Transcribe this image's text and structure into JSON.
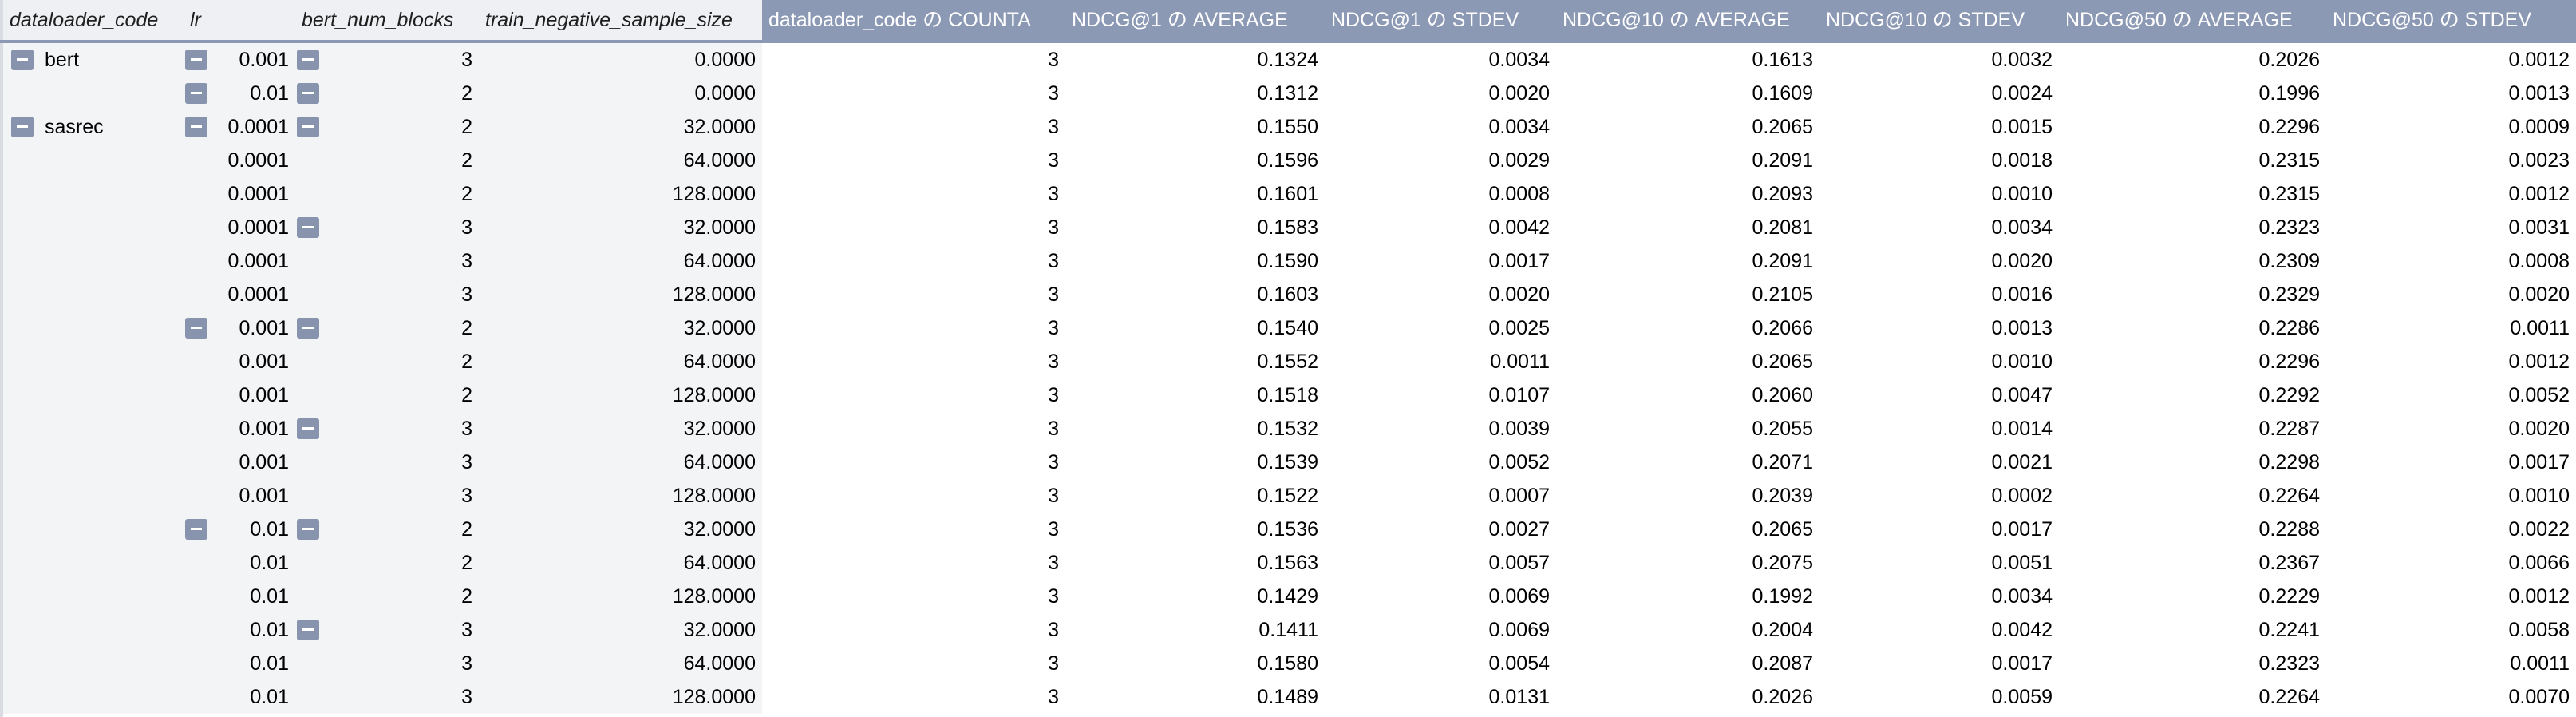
{
  "headers": {
    "dataloader_code": "dataloader_code",
    "lr": "lr",
    "bert_num_blocks": "bert_num_blocks",
    "train_negative_sample_size": "train_negative_sample_size",
    "counta": "dataloader_code の COUNTA",
    "ndcg1_avg": "NDCG@1 の AVERAGE",
    "ndcg1_std": "NDCG@1 の STDEV",
    "ndcg10_avg": "NDCG@10 の AVERAGE",
    "ndcg10_std": "NDCG@10 の STDEV",
    "ndcg50_avg": "NDCG@50 の AVERAGE",
    "ndcg50_std": "NDCG@50 の STDEV"
  },
  "rows": [
    {
      "code": "bert",
      "lr": "0.001",
      "blocks": "3",
      "neg": "0.0000",
      "count": "3",
      "n1a": "0.1324",
      "n1s": "0.0034",
      "n10a": "0.1613",
      "n10s": "0.0032",
      "n50a": "0.2026",
      "n50s": "0.0012",
      "t_code": true,
      "t_lr": true,
      "t_blocks": true
    },
    {
      "code": "",
      "lr": "0.01",
      "blocks": "2",
      "neg": "0.0000",
      "count": "3",
      "n1a": "0.1312",
      "n1s": "0.0020",
      "n10a": "0.1609",
      "n10s": "0.0024",
      "n50a": "0.1996",
      "n50s": "0.0013",
      "t_code": false,
      "t_lr": true,
      "t_blocks": true
    },
    {
      "code": "sasrec",
      "lr": "0.0001",
      "blocks": "2",
      "neg": "32.0000",
      "count": "3",
      "n1a": "0.1550",
      "n1s": "0.0034",
      "n10a": "0.2065",
      "n10s": "0.0015",
      "n50a": "0.2296",
      "n50s": "0.0009",
      "t_code": true,
      "t_lr": true,
      "t_blocks": true
    },
    {
      "code": "",
      "lr": "0.0001",
      "blocks": "2",
      "neg": "64.0000",
      "count": "3",
      "n1a": "0.1596",
      "n1s": "0.0029",
      "n10a": "0.2091",
      "n10s": "0.0018",
      "n50a": "0.2315",
      "n50s": "0.0023",
      "t_code": false,
      "t_lr": false,
      "t_blocks": false
    },
    {
      "code": "",
      "lr": "0.0001",
      "blocks": "2",
      "neg": "128.0000",
      "count": "3",
      "n1a": "0.1601",
      "n1s": "0.0008",
      "n10a": "0.2093",
      "n10s": "0.0010",
      "n50a": "0.2315",
      "n50s": "0.0012",
      "t_code": false,
      "t_lr": false,
      "t_blocks": false
    },
    {
      "code": "",
      "lr": "0.0001",
      "blocks": "3",
      "neg": "32.0000",
      "count": "3",
      "n1a": "0.1583",
      "n1s": "0.0042",
      "n10a": "0.2081",
      "n10s": "0.0034",
      "n50a": "0.2323",
      "n50s": "0.0031",
      "t_code": false,
      "t_lr": false,
      "t_blocks": true
    },
    {
      "code": "",
      "lr": "0.0001",
      "blocks": "3",
      "neg": "64.0000",
      "count": "3",
      "n1a": "0.1590",
      "n1s": "0.0017",
      "n10a": "0.2091",
      "n10s": "0.0020",
      "n50a": "0.2309",
      "n50s": "0.0008",
      "t_code": false,
      "t_lr": false,
      "t_blocks": false
    },
    {
      "code": "",
      "lr": "0.0001",
      "blocks": "3",
      "neg": "128.0000",
      "count": "3",
      "n1a": "0.1603",
      "n1s": "0.0020",
      "n10a": "0.2105",
      "n10s": "0.0016",
      "n50a": "0.2329",
      "n50s": "0.0020",
      "t_code": false,
      "t_lr": false,
      "t_blocks": false
    },
    {
      "code": "",
      "lr": "0.001",
      "blocks": "2",
      "neg": "32.0000",
      "count": "3",
      "n1a": "0.1540",
      "n1s": "0.0025",
      "n10a": "0.2066",
      "n10s": "0.0013",
      "n50a": "0.2286",
      "n50s": "0.0011",
      "t_code": false,
      "t_lr": true,
      "t_blocks": true
    },
    {
      "code": "",
      "lr": "0.001",
      "blocks": "2",
      "neg": "64.0000",
      "count": "3",
      "n1a": "0.1552",
      "n1s": "0.0011",
      "n10a": "0.2065",
      "n10s": "0.0010",
      "n50a": "0.2296",
      "n50s": "0.0012",
      "t_code": false,
      "t_lr": false,
      "t_blocks": false
    },
    {
      "code": "",
      "lr": "0.001",
      "blocks": "2",
      "neg": "128.0000",
      "count": "3",
      "n1a": "0.1518",
      "n1s": "0.0107",
      "n10a": "0.2060",
      "n10s": "0.0047",
      "n50a": "0.2292",
      "n50s": "0.0052",
      "t_code": false,
      "t_lr": false,
      "t_blocks": false
    },
    {
      "code": "",
      "lr": "0.001",
      "blocks": "3",
      "neg": "32.0000",
      "count": "3",
      "n1a": "0.1532",
      "n1s": "0.0039",
      "n10a": "0.2055",
      "n10s": "0.0014",
      "n50a": "0.2287",
      "n50s": "0.0020",
      "t_code": false,
      "t_lr": false,
      "t_blocks": true
    },
    {
      "code": "",
      "lr": "0.001",
      "blocks": "3",
      "neg": "64.0000",
      "count": "3",
      "n1a": "0.1539",
      "n1s": "0.0052",
      "n10a": "0.2071",
      "n10s": "0.0021",
      "n50a": "0.2298",
      "n50s": "0.0017",
      "t_code": false,
      "t_lr": false,
      "t_blocks": false
    },
    {
      "code": "",
      "lr": "0.001",
      "blocks": "3",
      "neg": "128.0000",
      "count": "3",
      "n1a": "0.1522",
      "n1s": "0.0007",
      "n10a": "0.2039",
      "n10s": "0.0002",
      "n50a": "0.2264",
      "n50s": "0.0010",
      "t_code": false,
      "t_lr": false,
      "t_blocks": false
    },
    {
      "code": "",
      "lr": "0.01",
      "blocks": "2",
      "neg": "32.0000",
      "count": "3",
      "n1a": "0.1536",
      "n1s": "0.0027",
      "n10a": "0.2065",
      "n10s": "0.0017",
      "n50a": "0.2288",
      "n50s": "0.0022",
      "t_code": false,
      "t_lr": true,
      "t_blocks": true
    },
    {
      "code": "",
      "lr": "0.01",
      "blocks": "2",
      "neg": "64.0000",
      "count": "3",
      "n1a": "0.1563",
      "n1s": "0.0057",
      "n10a": "0.2075",
      "n10s": "0.0051",
      "n50a": "0.2367",
      "n50s": "0.0066",
      "t_code": false,
      "t_lr": false,
      "t_blocks": false
    },
    {
      "code": "",
      "lr": "0.01",
      "blocks": "2",
      "neg": "128.0000",
      "count": "3",
      "n1a": "0.1429",
      "n1s": "0.0069",
      "n10a": "0.1992",
      "n10s": "0.0034",
      "n50a": "0.2229",
      "n50s": "0.0012",
      "t_code": false,
      "t_lr": false,
      "t_blocks": false
    },
    {
      "code": "",
      "lr": "0.01",
      "blocks": "3",
      "neg": "32.0000",
      "count": "3",
      "n1a": "0.1411",
      "n1s": "0.0069",
      "n10a": "0.2004",
      "n10s": "0.0042",
      "n50a": "0.2241",
      "n50s": "0.0058",
      "t_code": false,
      "t_lr": false,
      "t_blocks": true
    },
    {
      "code": "",
      "lr": "0.01",
      "blocks": "3",
      "neg": "64.0000",
      "count": "3",
      "n1a": "0.1580",
      "n1s": "0.0054",
      "n10a": "0.2087",
      "n10s": "0.0017",
      "n50a": "0.2323",
      "n50s": "0.0011",
      "t_code": false,
      "t_lr": false,
      "t_blocks": false
    },
    {
      "code": "",
      "lr": "0.01",
      "blocks": "3",
      "neg": "128.0000",
      "count": "3",
      "n1a": "0.1489",
      "n1s": "0.0131",
      "n10a": "0.2026",
      "n10s": "0.0059",
      "n50a": "0.2264",
      "n50s": "0.0070",
      "t_code": false,
      "t_lr": false,
      "t_blocks": false
    }
  ],
  "colors": {
    "header_value_bg": "#8c99b5",
    "header_label_bg": "#eef0f3",
    "toggle": "#8894ad",
    "label_area_bg": "#f3f4f6"
  },
  "icons": {
    "toggle": "collapse-minus-icon"
  }
}
